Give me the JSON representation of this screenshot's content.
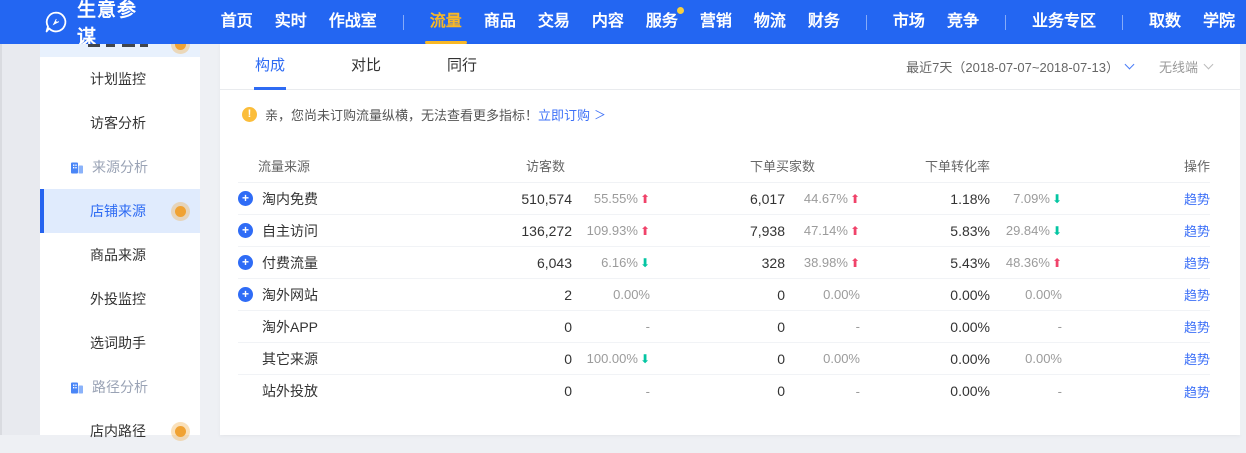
{
  "nav": {
    "brand": "生意参谋",
    "items": [
      {
        "label": "首页"
      },
      {
        "label": "实时"
      },
      {
        "label": "作战室"
      },
      {
        "divider": true
      },
      {
        "label": "流量",
        "active": true
      },
      {
        "label": "商品"
      },
      {
        "label": "交易"
      },
      {
        "label": "内容"
      },
      {
        "label": "服务",
        "badge": true
      },
      {
        "label": "营销"
      },
      {
        "label": "物流"
      },
      {
        "label": "财务"
      },
      {
        "divider": true
      },
      {
        "label": "市场"
      },
      {
        "label": "竞争"
      },
      {
        "divider": true
      },
      {
        "label": "业务专区"
      },
      {
        "divider": true
      },
      {
        "label": "取数"
      },
      {
        "label": "学院"
      }
    ]
  },
  "sidebar": {
    "items": [
      {
        "type": "item",
        "label": "计划监控"
      },
      {
        "type": "item",
        "label": "访客分析"
      },
      {
        "type": "section",
        "label": "来源分析"
      },
      {
        "type": "item",
        "label": "店铺来源",
        "active": true,
        "dot": true
      },
      {
        "type": "item",
        "label": "商品来源"
      },
      {
        "type": "item",
        "label": "外投监控"
      },
      {
        "type": "item",
        "label": "选词助手"
      },
      {
        "type": "section",
        "label": "路径分析"
      },
      {
        "type": "item",
        "label": "店内路径",
        "dot": true
      }
    ]
  },
  "toolbar": {
    "tabs": [
      {
        "label": "构成",
        "active": true
      },
      {
        "label": "对比"
      },
      {
        "label": "同行"
      }
    ],
    "date_range": "最近7天（2018-07-07~2018-07-13）",
    "channel": "无线端"
  },
  "notice": {
    "text": "亲，您尚未订购流量纵横，无法查看更多指标！",
    "link": "立即订购",
    "arrow": "＞"
  },
  "table": {
    "headers": [
      "流量来源",
      "访客数",
      "下单买家数",
      "下单转化率",
      "操作"
    ],
    "action_label": "趋势",
    "rows": [
      {
        "expand": true,
        "name": "淘内免费",
        "visitors": "510,574",
        "visitors_change": "55.55%",
        "visitors_dir": "up",
        "buyers": "6,017",
        "buyers_change": "44.67%",
        "buyers_dir": "up",
        "conv": "1.18%",
        "conv_change": "7.09%",
        "conv_dir": "down"
      },
      {
        "expand": true,
        "name": "自主访问",
        "visitors": "136,272",
        "visitors_change": "109.93%",
        "visitors_dir": "up",
        "buyers": "7,938",
        "buyers_change": "47.14%",
        "buyers_dir": "up",
        "conv": "5.83%",
        "conv_change": "29.84%",
        "conv_dir": "down"
      },
      {
        "expand": true,
        "name": "付费流量",
        "visitors": "6,043",
        "visitors_change": "6.16%",
        "visitors_dir": "down",
        "buyers": "328",
        "buyers_change": "38.98%",
        "buyers_dir": "up",
        "conv": "5.43%",
        "conv_change": "48.36%",
        "conv_dir": "up"
      },
      {
        "expand": true,
        "name": "淘外网站",
        "visitors": "2",
        "visitors_change": "0.00%",
        "visitors_dir": "flat",
        "buyers": "0",
        "buyers_change": "0.00%",
        "buyers_dir": "flat",
        "conv": "0.00%",
        "conv_change": "0.00%",
        "conv_dir": "flat"
      },
      {
        "expand": false,
        "name": "淘外APP",
        "visitors": "0",
        "visitors_change": "-",
        "visitors_dir": "flat",
        "buyers": "0",
        "buyers_change": "-",
        "buyers_dir": "flat",
        "conv": "0.00%",
        "conv_change": "-",
        "conv_dir": "flat"
      },
      {
        "expand": false,
        "name": "其它来源",
        "visitors": "0",
        "visitors_change": "100.00%",
        "visitors_dir": "down",
        "buyers": "0",
        "buyers_change": "0.00%",
        "buyers_dir": "flat",
        "conv": "0.00%",
        "conv_change": "0.00%",
        "conv_dir": "flat"
      },
      {
        "expand": false,
        "name": "站外投放",
        "visitors": "0",
        "visitors_change": "-",
        "visitors_dir": "flat",
        "buyers": "0",
        "buyers_change": "-",
        "buyers_dir": "flat",
        "conv": "0.00%",
        "conv_change": "-",
        "conv_dir": "flat"
      }
    ]
  },
  "colors": {
    "nav_bg": "#2366f2",
    "nav_active": "#f8b826",
    "accent": "#2e6bf3",
    "link": "#3e71f7",
    "up": "#f0436a",
    "down": "#04c5a2",
    "dot": "#f0a233"
  }
}
